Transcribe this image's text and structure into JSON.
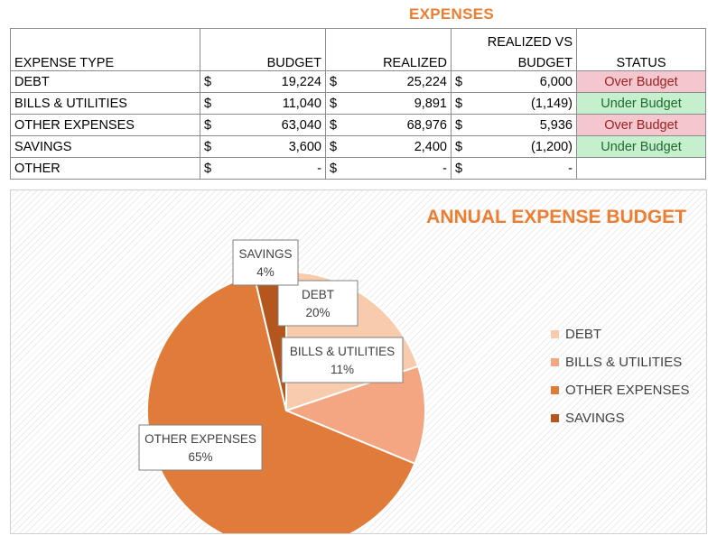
{
  "sheet_title": "EXPENSES",
  "table": {
    "headers": {
      "expense_type": "EXPENSE TYPE",
      "budget": "BUDGET",
      "realized": "REALIZED",
      "realized_vs_budget_line1": "REALIZED VS",
      "realized_vs_budget_line2": "BUDGET",
      "status": "STATUS"
    },
    "currency_symbol": "$",
    "rows": [
      {
        "type": "DEBT",
        "budget": "19,224",
        "realized": "25,224",
        "diff": "6,000",
        "status": "Over Budget",
        "status_kind": "over"
      },
      {
        "type": "BILLS & UTILITIES",
        "budget": "11,040",
        "realized": "9,891",
        "diff": "(1,149)",
        "status": "Under Budget",
        "status_kind": "under"
      },
      {
        "type": "OTHER EXPENSES",
        "budget": "63,040",
        "realized": "68,976",
        "diff": "5,936",
        "status": "Over Budget",
        "status_kind": "over"
      },
      {
        "type": "SAVINGS",
        "budget": "3,600",
        "realized": "2,400",
        "diff": "(1,200)",
        "status": "Under Budget",
        "status_kind": "under"
      },
      {
        "type": "OTHER",
        "budget": "-",
        "realized": "-",
        "diff": "-",
        "status": "",
        "status_kind": "none"
      }
    ]
  },
  "chart_data": {
    "type": "pie",
    "title": "ANNUAL EXPENSE BUDGET",
    "categories": [
      "DEBT",
      "BILLS & UTILITIES",
      "OTHER EXPENSES",
      "SAVINGS"
    ],
    "values": [
      19224,
      11040,
      63040,
      3600
    ],
    "percent_labels": [
      "20%",
      "11%",
      "65%",
      "4%"
    ],
    "colors": [
      "#f8cbad",
      "#f4a582",
      "#e07b39",
      "#b5561f"
    ],
    "legend_position": "right"
  }
}
